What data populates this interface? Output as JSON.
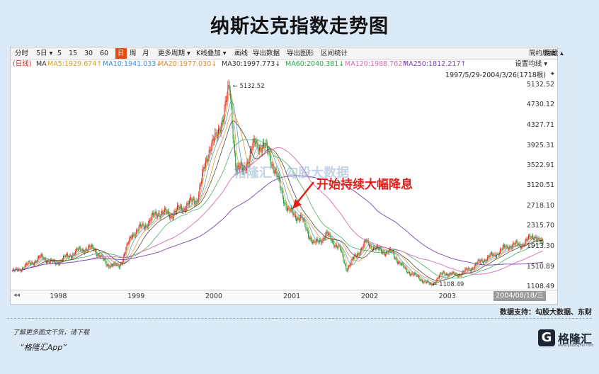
{
  "title": "纳斯达克指数走势图",
  "toolbar": {
    "items": [
      "分时",
      "5日 ▾",
      "5",
      "15",
      "30",
      "60",
      "日",
      "周",
      "月",
      "更多周期 ▾",
      "K线叠加 ▾",
      "画线",
      "导出数据",
      "导出图形",
      "区间统计"
    ],
    "active_index": 6,
    "right_items": [
      "简约版面",
      "隐藏 ▴"
    ]
  },
  "ma_row": {
    "prefix": "(日线)",
    "ma": "MA",
    "items": [
      {
        "label": "MA5:1929.674↑",
        "color": "#d4a017"
      },
      {
        "label": "MA10:1941.033↓",
        "color": "#3a8fd8"
      },
      {
        "label": "MA20:1977.030↓",
        "color": "#e08a2c"
      },
      {
        "label": "MA30:1997.773↓",
        "color": "#333333"
      },
      {
        "label": "MA60:2040.381↓",
        "color": "#2aa84a"
      },
      {
        "label": "MA120:1988.762↑",
        "color": "#d76ab0"
      },
      {
        "label": "MA250:1812.217↑",
        "color": "#7a44b3"
      }
    ],
    "settings_label": "设置均线 ▾",
    "range_label": "1997/5/29-2004/3/26(1718根)"
  },
  "annotation": "开始持续大幅降息",
  "watermark": "格隆汇  |  勾股大数据",
  "source": "数据支持：勾股大数据、东财",
  "footer": {
    "line1": "了解更多图文干货，请下载",
    "line2": "“格隆汇App”"
  },
  "logo": {
    "mark": "G",
    "text": "格隆汇",
    "sub": "www.gelonghui.com"
  },
  "chart_data": {
    "type": "line",
    "title": "纳斯达克指数走势图",
    "xlabel": "",
    "ylabel": "",
    "x_tick_labels": [
      "1998",
      "1999",
      "2000",
      "2001",
      "2002",
      "2003"
    ],
    "current_date_label": "2004/08/18/三",
    "y_tick_labels": [
      "5132.52",
      "4730.12",
      "4327.71",
      "3925.31",
      "3522.91",
      "3120.51",
      "2718.10",
      "2315.70",
      "1913.30",
      "1510.89",
      "1108.49"
    ],
    "ylim": [
      1108.49,
      5132.52
    ],
    "max_label": "5132.52",
    "min_label": "1108.49",
    "series": [
      {
        "name": "",
        "x": [
          "1997-06",
          "1997-08",
          "1997-10",
          "1997-12",
          "1998-02",
          "1998-04",
          "1998-06",
          "1998-08",
          "1998-10",
          "1998-12",
          "1999-02",
          "1999-04",
          "1999-06",
          "1999-08",
          "1999-10",
          "1999-12",
          "2000-01",
          "2000-03",
          "2000-04",
          "2000-05",
          "2000-07",
          "2000-09",
          "2000-10",
          "2000-12",
          "2001-02",
          "2001-04",
          "2001-06",
          "2001-08",
          "2001-09",
          "2001-12",
          "2002-02",
          "2002-04",
          "2002-06",
          "2002-08",
          "2002-10",
          "2002-12",
          "2003-02",
          "2003-04",
          "2003-06",
          "2003-08",
          "2003-10",
          "2003-12",
          "2004-02",
          "2004-03"
        ],
        "values": [
          1420,
          1560,
          1700,
          1570,
          1720,
          1850,
          1880,
          1560,
          1520,
          2170,
          2350,
          2600,
          2550,
          2710,
          2860,
          3950,
          4060,
          5048,
          3480,
          3420,
          3990,
          3800,
          3400,
          2620,
          2470,
          1950,
          2150,
          1860,
          1470,
          2000,
          1830,
          1790,
          1460,
          1300,
          1140,
          1390,
          1340,
          1460,
          1640,
          1760,
          1930,
          1950,
          2140,
          1980
        ]
      }
    ],
    "ma_lines": [
      "MA5",
      "MA10",
      "MA20",
      "MA30",
      "MA60",
      "MA120",
      "MA250"
    ],
    "grid": false,
    "legend": "top-left"
  }
}
